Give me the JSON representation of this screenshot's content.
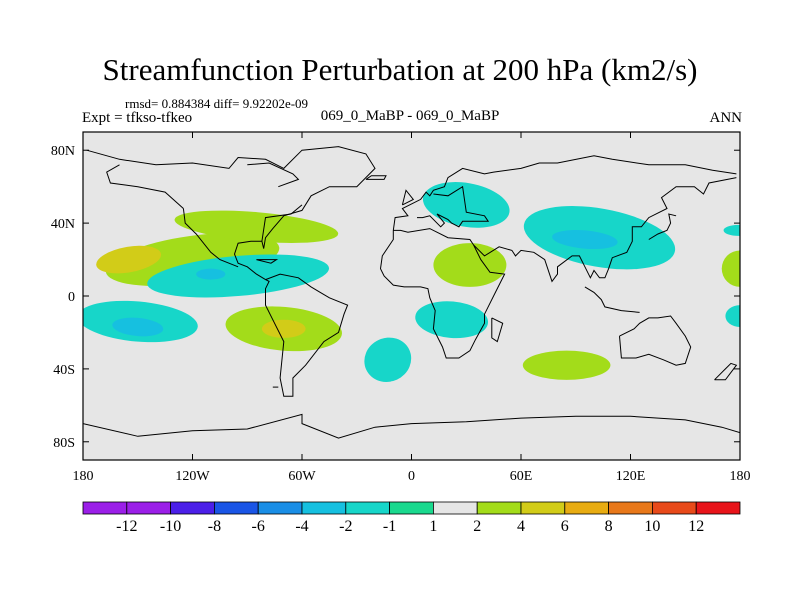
{
  "chart_data": {
    "type": "contour-map",
    "title": "Streamfunction Perturbation at 200 hPa (km2/s)",
    "stats": "rmsd= 0.884384 diff= 9.92202e-09",
    "left_label": "Expt = tfkso-tfkeo",
    "center_label": "069_0_MaBP - 069_0_MaBP",
    "right_label": "ANN",
    "x_ticks": [
      {
        "value": -180,
        "label": "180"
      },
      {
        "value": -120,
        "label": "120W"
      },
      {
        "value": -60,
        "label": "60W"
      },
      {
        "value": 0,
        "label": "0"
      },
      {
        "value": 60,
        "label": "60E"
      },
      {
        "value": 120,
        "label": "120E"
      },
      {
        "value": 180,
        "label": "180"
      }
    ],
    "y_ticks": [
      {
        "value": 80,
        "label": "80N"
      },
      {
        "value": 40,
        "label": "40N"
      },
      {
        "value": 0,
        "label": "0"
      },
      {
        "value": -40,
        "label": "40S"
      },
      {
        "value": -80,
        "label": "80S"
      }
    ],
    "xlim": [
      -180,
      180
    ],
    "ylim": [
      -90,
      90
    ],
    "colorbar": {
      "labels": [
        "-12",
        "-10",
        "-8",
        "-6",
        "-4",
        "-2",
        "-1",
        "1",
        "2",
        "4",
        "6",
        "8",
        "10",
        "12"
      ],
      "colors": [
        "#9b1fe8",
        "#4b1fe8",
        "#1a55e6",
        "#1a8ee6",
        "#16c0e0",
        "#17d6c9",
        "#1ad98e",
        "#e6e6e6",
        "#a3dc1a",
        "#d2cc18",
        "#e8ac12",
        "#e8781a",
        "#e84a1a",
        "#e8141a"
      ]
    },
    "regions": [
      {
        "name": "na-pacific-positive",
        "level": "2",
        "lon": -120,
        "lat": 20,
        "rlon": 48,
        "rlat": 13,
        "rot": -8
      },
      {
        "name": "na-pacific-core",
        "level": "4",
        "lon": -155,
        "lat": 20,
        "rlon": 18,
        "rlat": 7,
        "rot": -10
      },
      {
        "name": "na-atlantic-ridge",
        "level": "2",
        "lon": -85,
        "lat": 38,
        "rlon": 45,
        "rlat": 8,
        "rot": 5
      },
      {
        "name": "tropical-pacific-negative",
        "level": "-2",
        "lon": -95,
        "lat": 11,
        "rlon": 50,
        "rlat": 11,
        "rot": -5
      },
      {
        "name": "tropical-pacific-core",
        "level": "-4",
        "lon": -110,
        "lat": 12,
        "rlon": 8,
        "rlat": 3,
        "rot": 0
      },
      {
        "name": "south-pacific-negative",
        "level": "-2",
        "lon": -150,
        "lat": -14,
        "rlon": 33,
        "rlat": 11,
        "rot": 5
      },
      {
        "name": "south-pacific-core",
        "level": "-4",
        "lon": -150,
        "lat": -17,
        "rlon": 14,
        "rlat": 5,
        "rot": 5
      },
      {
        "name": "south-america-positive",
        "level": "2",
        "lon": -70,
        "lat": -18,
        "rlon": 32,
        "rlat": 12,
        "rot": 5
      },
      {
        "name": "south-america-core",
        "level": "4",
        "lon": -70,
        "lat": -18,
        "rlon": 12,
        "rlat": 5,
        "rot": 0
      },
      {
        "name": "south-atlantic-negative",
        "level": "-2",
        "lon": -13,
        "lat": -35,
        "rlon": 13,
        "rlat": 12,
        "rot": -25
      },
      {
        "name": "europe-negative",
        "level": "-2",
        "lon": 30,
        "lat": 50,
        "rlon": 24,
        "rlat": 12,
        "rot": 10
      },
      {
        "name": "africa-positive",
        "level": "2",
        "lon": 32,
        "lat": 17,
        "rlon": 20,
        "rlat": 12,
        "rot": 0
      },
      {
        "name": "indian-ocean-negative",
        "level": "-2",
        "lon": 22,
        "lat": -13,
        "rlon": 20,
        "rlat": 10,
        "rot": 5
      },
      {
        "name": "asia-negative",
        "level": "-2",
        "lon": 103,
        "lat": 32,
        "rlon": 42,
        "rlat": 16,
        "rot": 10
      },
      {
        "name": "asia-core",
        "level": "-4",
        "lon": 95,
        "lat": 31,
        "rlon": 18,
        "rlat": 5,
        "rot": 5
      },
      {
        "name": "south-indian-positive",
        "level": "2",
        "lon": 85,
        "lat": -38,
        "rlon": 24,
        "rlat": 8,
        "rot": 0
      },
      {
        "name": "west-pacific-negative",
        "level": "-2",
        "lon": 179,
        "lat": 36,
        "rlon": 8,
        "rlat": 3,
        "rot": 0
      },
      {
        "name": "date-line-positive",
        "level": "2",
        "lon": 180,
        "lat": 15,
        "rlon": 10,
        "rlat": 10,
        "rot": 0
      },
      {
        "name": "date-line-negative",
        "level": "-2",
        "lon": 180,
        "lat": -11,
        "rlon": 8,
        "rlat": 6,
        "rot": 0
      }
    ],
    "coastlines": [
      [
        [
          -178,
          80
        ],
        [
          -160,
          75
        ],
        [
          -140,
          72
        ],
        [
          -120,
          73
        ],
        [
          -100,
          70
        ],
        [
          -95,
          76
        ],
        [
          -80,
          75
        ],
        [
          -70,
          70
        ],
        [
          -60,
          80
        ],
        [
          -40,
          82
        ],
        [
          -25,
          78
        ],
        [
          -20,
          70
        ],
        [
          -30,
          60
        ],
        [
          -45,
          60
        ],
        [
          -55,
          55
        ],
        [
          -60,
          47
        ],
        [
          -70,
          44
        ],
        [
          -76,
          37
        ],
        [
          -80,
          32
        ],
        [
          -81,
          26
        ],
        [
          -82,
          30
        ],
        [
          -88,
          30
        ],
        [
          -95,
          29
        ],
        [
          -97,
          23
        ],
        [
          -95,
          18
        ],
        [
          -90,
          16
        ],
        [
          -85,
          12
        ],
        [
          -80,
          9
        ],
        [
          -78,
          8
        ],
        [
          -80,
          4
        ],
        [
          -80,
          -5
        ],
        [
          -75,
          -15
        ],
        [
          -70,
          -25
        ],
        [
          -72,
          -45
        ],
        [
          -70,
          -55
        ],
        [
          -65,
          -55
        ],
        [
          -65,
          -45
        ],
        [
          -58,
          -38
        ],
        [
          -48,
          -25
        ],
        [
          -40,
          -20
        ],
        [
          -37,
          -10
        ],
        [
          -35,
          -5
        ],
        [
          -45,
          -1
        ],
        [
          -50,
          2
        ],
        [
          -55,
          5
        ],
        [
          -62,
          10
        ],
        [
          -72,
          12
        ],
        [
          -80,
          9
        ]
      ],
      [
        [
          -82,
          30
        ],
        [
          -80,
          43
        ],
        [
          -66,
          45
        ],
        [
          -60,
          50
        ]
      ],
      [
        [
          -125,
          48
        ],
        [
          -124,
          40
        ],
        [
          -118,
          34
        ],
        [
          -110,
          24
        ],
        [
          -105,
          20
        ],
        [
          -95,
          16
        ]
      ],
      [
        [
          -125,
          48
        ],
        [
          -135,
          57
        ],
        [
          -150,
          60
        ],
        [
          -165,
          62
        ],
        [
          -167,
          68
        ],
        [
          -160,
          72
        ]
      ],
      [
        [
          -10,
          36
        ],
        [
          -9,
          43
        ],
        [
          -2,
          44
        ],
        [
          -5,
          48
        ],
        [
          5,
          53
        ],
        [
          8,
          57
        ],
        [
          10,
          55
        ],
        [
          12,
          58
        ],
        [
          18,
          60
        ],
        [
          20,
          65
        ],
        [
          28,
          70
        ],
        [
          40,
          67
        ],
        [
          45,
          68
        ],
        [
          60,
          70
        ],
        [
          70,
          73
        ],
        [
          80,
          73
        ],
        [
          100,
          77
        ],
        [
          110,
          75
        ],
        [
          130,
          72
        ],
        [
          150,
          72
        ],
        [
          165,
          69
        ],
        [
          178,
          67
        ]
      ],
      [
        [
          -10,
          36
        ],
        [
          -6,
          36
        ],
        [
          -2,
          35
        ],
        [
          10,
          37
        ],
        [
          20,
          32
        ],
        [
          32,
          31
        ],
        [
          34,
          28
        ],
        [
          38,
          20
        ],
        [
          43,
          13
        ],
        [
          51,
          12
        ],
        [
          46,
          2
        ],
        [
          40,
          -10
        ],
        [
          40,
          -15
        ],
        [
          35,
          -24
        ],
        [
          32,
          -30
        ],
        [
          26,
          -34
        ],
        [
          19,
          -34
        ],
        [
          17,
          -28
        ],
        [
          12,
          -18
        ],
        [
          13,
          -8
        ],
        [
          10,
          -1
        ],
        [
          9,
          4
        ],
        [
          5,
          5
        ],
        [
          -4,
          5
        ],
        [
          -10,
          6
        ],
        [
          -15,
          11
        ],
        [
          -17,
          15
        ],
        [
          -16,
          22
        ],
        [
          -12,
          28
        ],
        [
          -10,
          31
        ],
        [
          -10,
          36
        ]
      ],
      [
        [
          34,
          28
        ],
        [
          40,
          22
        ],
        [
          48,
          27
        ],
        [
          55,
          25
        ],
        [
          57,
          22
        ],
        [
          60,
          25
        ],
        [
          67,
          24
        ],
        [
          73,
          20
        ],
        [
          77,
          8
        ],
        [
          80,
          12
        ],
        [
          80,
          16
        ],
        [
          88,
          22
        ],
        [
          92,
          22
        ],
        [
          95,
          16
        ],
        [
          98,
          10
        ],
        [
          100,
          14
        ],
        [
          103,
          10
        ],
        [
          106,
          10
        ],
        [
          108,
          15
        ],
        [
          110,
          21
        ],
        [
          118,
          24
        ],
        [
          121,
          30
        ],
        [
          121,
          38
        ],
        [
          126,
          38
        ],
        [
          130,
          43
        ],
        [
          140,
          48
        ],
        [
          137,
          54
        ],
        [
          145,
          60
        ],
        [
          155,
          60
        ],
        [
          160,
          56
        ],
        [
          163,
          62
        ],
        [
          178,
          65
        ]
      ],
      [
        [
          12,
          56
        ],
        [
          20,
          55
        ],
        [
          28,
          60
        ],
        [
          30,
          46
        ],
        [
          40,
          44
        ],
        [
          42,
          41
        ],
        [
          28,
          41
        ],
        [
          26,
          38
        ],
        [
          22,
          40
        ],
        [
          20,
          42
        ],
        [
          14,
          45
        ],
        [
          18,
          40
        ],
        [
          16,
          38
        ],
        [
          10,
          44
        ],
        [
          6,
          43
        ],
        [
          3,
          43
        ]
      ],
      [
        [
          114,
          -22
        ],
        [
          115,
          -34
        ],
        [
          123,
          -34
        ],
        [
          130,
          -32
        ],
        [
          138,
          -35
        ],
        [
          145,
          -38
        ],
        [
          150,
          -37
        ],
        [
          153,
          -28
        ],
        [
          150,
          -22
        ],
        [
          145,
          -15
        ],
        [
          142,
          -11
        ],
        [
          135,
          -12
        ],
        [
          130,
          -12
        ],
        [
          125,
          -15
        ],
        [
          122,
          -18
        ],
        [
          114,
          -22
        ]
      ],
      [
        [
          95,
          5
        ],
        [
          100,
          2
        ],
        [
          104,
          -2
        ],
        [
          106,
          -6
        ],
        [
          115,
          -8
        ],
        [
          125,
          -9
        ]
      ],
      [
        [
          130,
          31
        ],
        [
          135,
          34
        ],
        [
          140,
          36
        ],
        [
          142,
          40
        ],
        [
          141,
          45
        ],
        [
          145,
          44
        ]
      ],
      [
        [
          166,
          -46
        ],
        [
          172,
          -40
        ],
        [
          175,
          -37
        ],
        [
          178,
          -38
        ],
        [
          172,
          -46
        ],
        [
          166,
          -46
        ]
      ],
      [
        [
          44,
          -12
        ],
        [
          50,
          -15
        ],
        [
          47,
          -25
        ],
        [
          44,
          -23
        ],
        [
          44,
          -12
        ]
      ],
      [
        [
          -180,
          -70
        ],
        [
          -150,
          -77
        ],
        [
          -120,
          -74
        ],
        [
          -90,
          -73
        ],
        [
          -60,
          -65
        ],
        [
          -60,
          -70
        ],
        [
          -40,
          -78
        ],
        [
          -20,
          -72
        ],
        [
          0,
          -70
        ],
        [
          30,
          -69
        ],
        [
          60,
          -67
        ],
        [
          90,
          -66
        ],
        [
          120,
          -66
        ],
        [
          150,
          -68
        ],
        [
          170,
          -72
        ],
        [
          180,
          -75
        ]
      ],
      [
        [
          -73,
          60
        ],
        [
          -62,
          64
        ],
        [
          -65,
          67
        ],
        [
          -78,
          73
        ],
        [
          -90,
          72
        ]
      ],
      [
        [
          -25,
          64
        ],
        [
          -15,
          64
        ],
        [
          -14,
          66
        ],
        [
          -22,
          66
        ],
        [
          -25,
          64
        ]
      ],
      [
        [
          -5,
          50
        ],
        [
          -3,
          58
        ],
        [
          1,
          53
        ],
        [
          -5,
          50
        ]
      ],
      [
        [
          -85,
          20
        ],
        [
          -74,
          20
        ],
        [
          -77,
          18
        ],
        [
          -85,
          20
        ]
      ],
      [
        [
          -73,
          -50
        ],
        [
          -76,
          -50
        ]
      ]
    ]
  }
}
